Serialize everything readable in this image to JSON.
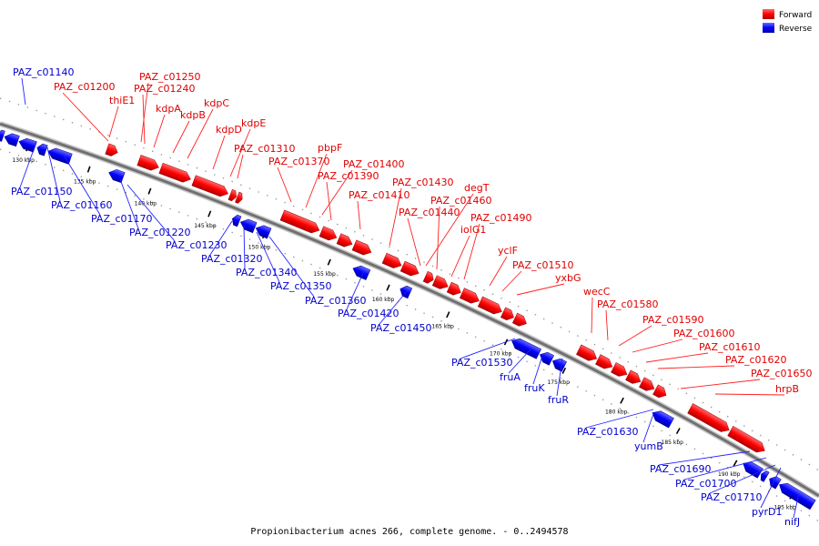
{
  "legend": [
    {
      "label": "Forward",
      "color": "#ff0000"
    },
    {
      "label": "Reverse",
      "color": "#0000ff"
    }
  ],
  "caption": "Propionibacterium acnes 266, complete genome. - 0..2494578",
  "colors": {
    "forward": "#ff0000",
    "reverse": "#0000ff",
    "backbone": "#808080"
  },
  "scale_ticks": [
    {
      "label": "130 kbp",
      "kbp": 130
    },
    {
      "label": "135 kbp",
      "kbp": 135
    },
    {
      "label": "140 kbp",
      "kbp": 140
    },
    {
      "label": "145 kbp",
      "kbp": 145
    },
    {
      "label": "150 kbp",
      "kbp": 150
    },
    {
      "label": "155 kbp",
      "kbp": 155
    },
    {
      "label": "160 kbp",
      "kbp": 160
    },
    {
      "label": "165 kbp",
      "kbp": 165
    },
    {
      "label": "170 kbp",
      "kbp": 170
    },
    {
      "label": "175 kbp",
      "kbp": 175
    },
    {
      "label": "180 kbp",
      "kbp": 180
    },
    {
      "label": "185 kbp",
      "kbp": 185
    },
    {
      "label": "190 kbp",
      "kbp": 190
    },
    {
      "label": "195 kbp",
      "kbp": 195
    }
  ],
  "forward_labels": [
    "PAZ_c01200",
    "thiE1",
    "PAZ_c01250",
    "PAZ_c01240",
    "kdpA",
    "kdpB",
    "kdpC",
    "kdpD",
    "kdpE",
    "PAZ_c01310",
    "PAZ_c01370",
    "pbpF",
    "PAZ_c01400",
    "PAZ_c01390",
    "PAZ_c01410",
    "PAZ_c01430",
    "degT",
    "PAZ_c01460",
    "PAZ_c01440",
    "iolG1",
    "PAZ_c01490",
    "yclF",
    "PAZ_c01510",
    "yxbG",
    "wecC",
    "PAZ_c01580",
    "PAZ_c01590",
    "PAZ_c01600",
    "PAZ_c01610",
    "PAZ_c01620",
    "PAZ_c01650",
    "hrpB"
  ],
  "reverse_labels": [
    "PAZ_c01140",
    "PAZ_c01150",
    "PAZ_c01160",
    "PAZ_c01170",
    "PAZ_c01220",
    "PAZ_c01230",
    "PAZ_c01320",
    "PAZ_c01340",
    "PAZ_c01350",
    "PAZ_c01360",
    "PAZ_c01420",
    "PAZ_c01450",
    "PAZ_c01530",
    "fruA",
    "fruK",
    "fruR",
    "PAZ_c01630",
    "yumB",
    "PAZ_c01690",
    "PAZ_c01700",
    "PAZ_c01710",
    "pyrD1",
    "nifJ"
  ]
}
